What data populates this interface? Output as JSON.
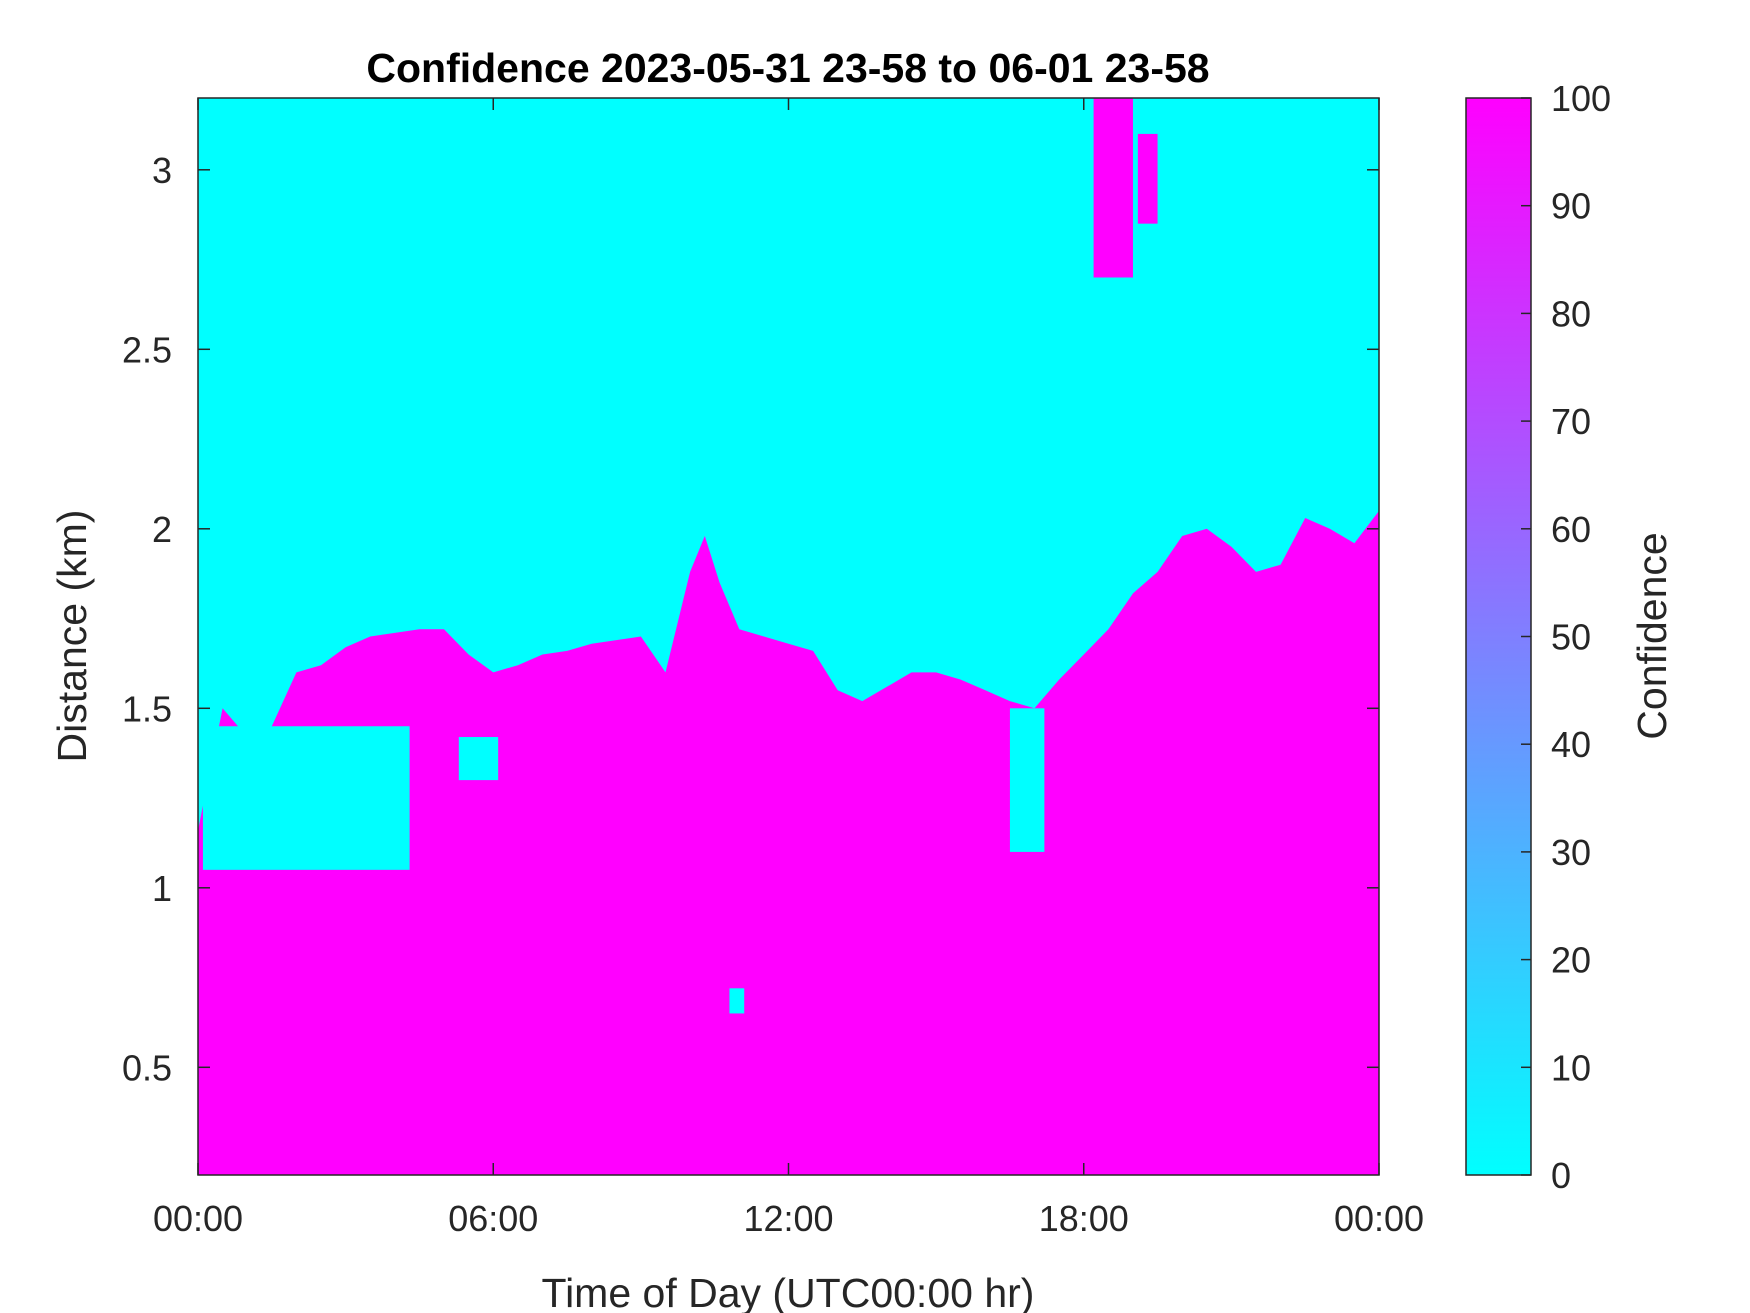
{
  "chart_data": {
    "type": "heatmap",
    "title": "Confidence 2023-05-31 23-58 to 06-01 23-58",
    "xlabel": "Time of Day (UTC00:00 hr)",
    "ylabel": "Distance (km)",
    "x_unit": "hours",
    "x_range": [
      0,
      24
    ],
    "y_range": [
      0.2,
      3.2
    ],
    "x_ticks": [
      {
        "value": 0,
        "label": "00:00"
      },
      {
        "value": 6,
        "label": "06:00"
      },
      {
        "value": 12,
        "label": "12:00"
      },
      {
        "value": 18,
        "label": "18:00"
      },
      {
        "value": 24,
        "label": "00:00"
      }
    ],
    "y_ticks": [
      {
        "value": 0.5,
        "label": "0.5"
      },
      {
        "value": 1,
        "label": "1"
      },
      {
        "value": 1.5,
        "label": "1.5"
      },
      {
        "value": 2,
        "label": "2"
      },
      {
        "value": 2.5,
        "label": "2.5"
      },
      {
        "value": 3,
        "label": "3"
      }
    ],
    "colorbar": {
      "label": "Confidence",
      "range": [
        0,
        100
      ],
      "ticks": [
        "0",
        "10",
        "20",
        "30",
        "40",
        "50",
        "60",
        "70",
        "80",
        "90",
        "100"
      ],
      "color_low": "#00ffff",
      "color_high": "#ff00ff"
    },
    "cells_value_high": 100,
    "cells_value_low": 0,
    "boundary_description": "Confidence is 100 (magenta) below the boundary height and 0 (cyan) above it",
    "boundary_km": [
      [
        0.0,
        1.16
      ],
      [
        0.5,
        1.5
      ],
      [
        1.0,
        1.42
      ],
      [
        1.5,
        1.45
      ],
      [
        2.0,
        1.6
      ],
      [
        2.5,
        1.62
      ],
      [
        3.0,
        1.67
      ],
      [
        3.5,
        1.7
      ],
      [
        4.0,
        1.71
      ],
      [
        4.5,
        1.72
      ],
      [
        5.0,
        1.72
      ],
      [
        5.5,
        1.65
      ],
      [
        6.0,
        1.6
      ],
      [
        6.5,
        1.62
      ],
      [
        7.0,
        1.65
      ],
      [
        7.5,
        1.66
      ],
      [
        8.0,
        1.68
      ],
      [
        8.5,
        1.69
      ],
      [
        9.0,
        1.7
      ],
      [
        9.5,
        1.6
      ],
      [
        10.0,
        1.88
      ],
      [
        10.3,
        1.98
      ],
      [
        10.6,
        1.85
      ],
      [
        11.0,
        1.72
      ],
      [
        11.5,
        1.7
      ],
      [
        12.0,
        1.68
      ],
      [
        12.5,
        1.66
      ],
      [
        13.0,
        1.55
      ],
      [
        13.5,
        1.52
      ],
      [
        14.0,
        1.56
      ],
      [
        14.5,
        1.6
      ],
      [
        15.0,
        1.6
      ],
      [
        15.5,
        1.58
      ],
      [
        16.0,
        1.55
      ],
      [
        16.5,
        1.52
      ],
      [
        17.0,
        1.5
      ],
      [
        17.5,
        1.58
      ],
      [
        18.0,
        1.65
      ],
      [
        18.5,
        1.72
      ],
      [
        19.0,
        1.82
      ],
      [
        19.5,
        1.88
      ],
      [
        20.0,
        1.98
      ],
      [
        20.5,
        2.0
      ],
      [
        21.0,
        1.95
      ],
      [
        21.5,
        1.88
      ],
      [
        22.0,
        1.9
      ],
      [
        22.5,
        2.03
      ],
      [
        23.0,
        2.0
      ],
      [
        23.5,
        1.96
      ],
      [
        24.0,
        2.05
      ]
    ],
    "magenta_patches_aloft": [
      {
        "t": [
          18.2,
          19.0
        ],
        "km": [
          2.7,
          3.2
        ]
      },
      {
        "t": [
          19.1,
          19.5
        ],
        "km": [
          2.85,
          3.1
        ]
      }
    ],
    "cyan_patches_low": [
      {
        "t": [
          0.1,
          4.3
        ],
        "km": [
          1.05,
          1.45
        ]
      },
      {
        "t": [
          5.3,
          6.1
        ],
        "km": [
          1.3,
          1.42
        ]
      },
      {
        "t": [
          10.8,
          11.1
        ],
        "km": [
          0.65,
          0.72
        ]
      },
      {
        "t": [
          16.5,
          17.2
        ],
        "km": [
          1.1,
          1.5
        ]
      }
    ]
  }
}
